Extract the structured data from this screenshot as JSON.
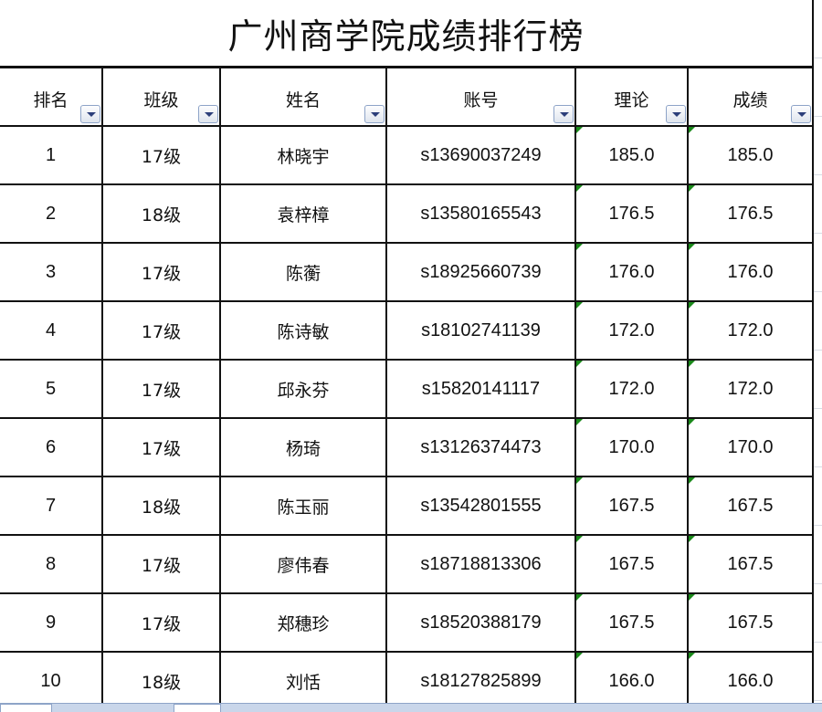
{
  "title": "广州商学院成绩排行榜",
  "headers": [
    "排名",
    "班级",
    "姓名",
    "账号",
    "理论",
    "成绩"
  ],
  "filter_icon": "dropdown-arrow-icon",
  "rows": [
    {
      "rank": "1",
      "class": "17级",
      "name": "林晓宇",
      "account": "s13690037249",
      "theory": "185.0",
      "score": "185.0"
    },
    {
      "rank": "2",
      "class": "18级",
      "name": "袁梓樟",
      "account": "s13580165543",
      "theory": "176.5",
      "score": "176.5"
    },
    {
      "rank": "3",
      "class": "17级",
      "name": "陈蘅",
      "account": "s18925660739",
      "theory": "176.0",
      "score": "176.0"
    },
    {
      "rank": "4",
      "class": "17级",
      "name": "陈诗敏",
      "account": "s18102741139",
      "theory": "172.0",
      "score": "172.0"
    },
    {
      "rank": "5",
      "class": "17级",
      "name": "邱永芬",
      "account": "s15820141117",
      "theory": "172.0",
      "score": "172.0"
    },
    {
      "rank": "6",
      "class": "17级",
      "name": "杨琦",
      "account": "s13126374473",
      "theory": "170.0",
      "score": "170.0"
    },
    {
      "rank": "7",
      "class": "18级",
      "name": "陈玉丽",
      "account": "s13542801555",
      "theory": "167.5",
      "score": "167.5"
    },
    {
      "rank": "8",
      "class": "17级",
      "name": "廖伟春",
      "account": "s18718813306",
      "theory": "167.5",
      "score": "167.5"
    },
    {
      "rank": "9",
      "class": "17级",
      "name": "郑穗珍",
      "account": "s18520388179",
      "theory": "167.5",
      "score": "167.5"
    },
    {
      "rank": "10",
      "class": "18级",
      "name": "刘恬",
      "account": "s18127825899",
      "theory": "166.0",
      "score": "166.0"
    }
  ],
  "colors": {
    "border": "#111111",
    "number_marker": "#1a8a1a",
    "filter_arrow": "#2c3f7a",
    "tab_bar": "#c9d6ea"
  }
}
